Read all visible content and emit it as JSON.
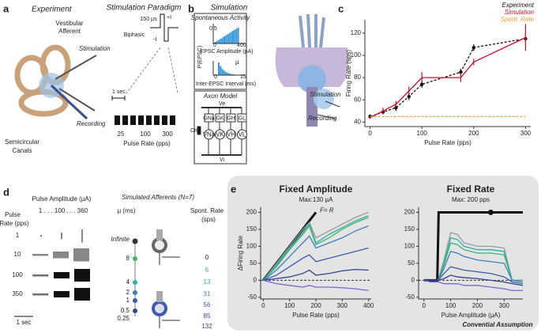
{
  "panels": {
    "a": {
      "label": "a",
      "title": "Experiment",
      "afferent": [
        "Vestibular",
        "Afferent"
      ],
      "stimulation": "Stimulation",
      "canals": [
        "Semicircular",
        "Canals"
      ],
      "recording": "Recording",
      "paradigm": "Stimulation Paradigm",
      "biphasic": "Biphasic",
      "width": "150 µs",
      "plus": "+I",
      "minus": "-I",
      "scale": "1 sec",
      "rates": [
        "25",
        "100",
        "300"
      ],
      "rate_label": "Pulse Rate (pps)"
    },
    "b": {
      "label": "b",
      "title": "Simulation",
      "spont": "Spontaneous Activity",
      "p_label": "P(EPSC)",
      "amp_ticks": [
        "0.5",
        "0",
        "400"
      ],
      "amp_label": "EPSC Amplitude (pA)",
      "mu": "µ",
      "int_ticks": [
        "0",
        "15"
      ],
      "int_label": "Inter-EPSC Interval (ms)",
      "axon": "Axon Model",
      "ve": "Ve",
      "cm": "Cm",
      "gates": [
        "GNa",
        "GK",
        "GH",
        "GL"
      ],
      "reversals": [
        "VNa",
        "VK",
        "VH",
        "VL"
      ],
      "vi": "Vi",
      "stimulation": "Stimulation",
      "recording": "Recording"
    },
    "d": {
      "label": "d",
      "amp_title": "Pulse Amplitude (µA)",
      "amp_range": "1 . . . 100 . . . 360",
      "rate_title": [
        "Pulse",
        "Rate (pps)"
      ],
      "rates": [
        "1",
        "10",
        "100",
        "350"
      ],
      "scale": "1 sec",
      "sim_title": "Simulated Afferents (N=7)",
      "mu_title": "µ (ms)",
      "spont_title": [
        "Spont. Rate",
        "(sps)"
      ],
      "mus": [
        "Infinite",
        "8",
        "4",
        "2",
        "1",
        "0.5",
        "0.25"
      ],
      "spont_rates": [
        "0",
        "6",
        "13",
        "31",
        "56",
        "85",
        "132"
      ]
    },
    "e": {
      "label": "e",
      "assumption": "Convential Assumption"
    }
  },
  "chart_data": [
    {
      "type": "line",
      "xlabel": "Pulse Rate (pps)",
      "ylabel": "Firing Rate (sps)",
      "x": [
        0,
        25,
        50,
        75,
        100,
        175,
        200,
        300
      ],
      "xlim": [
        -10,
        310
      ],
      "ylim": [
        36,
        132
      ],
      "xticks": [
        0,
        100,
        200,
        300
      ],
      "yticks": [
        40,
        60,
        80,
        100,
        120
      ],
      "series": [
        {
          "name": "Experiment",
          "color": "#111111",
          "dash": true,
          "marker": "circle",
          "values": [
            45,
            49,
            53,
            63,
            74,
            85,
            107,
            115
          ],
          "errors": [
            2,
            2,
            3,
            3,
            3,
            3,
            3,
            5
          ]
        },
        {
          "name": "Simulation",
          "color": "#c8102e",
          "values": [
            44,
            50,
            56,
            68,
            80,
            80,
            94,
            116
          ],
          "errors": [
            1,
            3,
            3,
            4,
            5,
            4,
            3,
            12
          ]
        },
        {
          "name": "Spont. Rate",
          "color": "#f0a030",
          "dash": true,
          "values": [
            45,
            45,
            45,
            45,
            45,
            45,
            45,
            45
          ]
        }
      ]
    },
    {
      "type": "line",
      "title": "Fixed Amplitude",
      "subtitle": "Max:130 µA",
      "xlabel": "Pulse Rate (pps)",
      "ylabel": "ΔFiring Rate",
      "annotation": "F= R",
      "x": [
        0,
        50,
        100,
        150,
        175,
        200,
        250,
        300,
        350,
        400
      ],
      "xlim": [
        -10,
        410
      ],
      "ylim": [
        -55,
        215
      ],
      "xticks": [
        0,
        100,
        200,
        300,
        400
      ],
      "yticks": [
        -50,
        0,
        50,
        100,
        150,
        200
      ],
      "series": [
        {
          "color": "#111111",
          "width": 3,
          "values": [
            0,
            50,
            100,
            150,
            175,
            200,
            null,
            null,
            null,
            null
          ]
        },
        {
          "color": "#999999",
          "values": [
            0,
            50,
            100,
            150,
            170,
            125,
            145,
            165,
            185,
            200
          ]
        },
        {
          "color": "#2ab0a8",
          "values": [
            0,
            45,
            95,
            140,
            165,
            110,
            135,
            155,
            175,
            190
          ]
        },
        {
          "color": "#3cb371",
          "values": [
            0,
            40,
            90,
            135,
            160,
            105,
            125,
            150,
            170,
            185
          ]
        },
        {
          "color": "#3a7fc1",
          "values": [
            0,
            30,
            70,
            110,
            130,
            95,
            110,
            125,
            145,
            160
          ]
        },
        {
          "color": "#3d5aa8",
          "values": [
            0,
            15,
            40,
            65,
            75,
            55,
            65,
            75,
            85,
            95
          ]
        },
        {
          "color": "#31428f",
          "values": [
            0,
            5,
            10,
            20,
            30,
            15,
            20,
            28,
            32,
            30
          ]
        },
        {
          "color": "#7a6acd",
          "values": [
            0,
            -10,
            -15,
            -20,
            -15,
            -20,
            -20,
            -22,
            -25,
            -30
          ]
        }
      ]
    },
    {
      "type": "line",
      "title": "Fixed Rate",
      "subtitle": "Max: 200 pps",
      "xlabel": "Pulse Amplitude (µA)",
      "x": [
        0,
        25,
        50,
        55,
        75,
        100,
        125,
        150,
        200,
        250,
        300,
        330,
        370
      ],
      "xlim": [
        -20,
        370
      ],
      "ylim": [
        -55,
        215
      ],
      "xticks": [
        0,
        100,
        200,
        300
      ],
      "yticks": [
        -50,
        0,
        50,
        100,
        150,
        200
      ],
      "series": [
        {
          "color": "#111111",
          "width": 3,
          "marker_at": 9,
          "values": [
            0,
            0,
            0,
            200,
            200,
            200,
            200,
            200,
            200,
            200,
            200,
            200,
            200
          ]
        },
        {
          "color": "#999999",
          "values": [
            0,
            0,
            0,
            5,
            60,
            140,
            135,
            110,
            100,
            100,
            95,
            0,
            0
          ]
        },
        {
          "color": "#2ab0a8",
          "values": [
            0,
            0,
            0,
            5,
            50,
            125,
            120,
            100,
            90,
            90,
            85,
            0,
            0
          ]
        },
        {
          "color": "#3cb371",
          "values": [
            0,
            0,
            0,
            5,
            45,
            110,
            105,
            90,
            80,
            80,
            75,
            0,
            0
          ]
        },
        {
          "color": "#3a7fc1",
          "values": [
            0,
            0,
            0,
            3,
            35,
            85,
            80,
            70,
            60,
            55,
            50,
            0,
            -5
          ]
        },
        {
          "color": "#3d5aa8",
          "values": [
            0,
            0,
            0,
            2,
            20,
            40,
            35,
            30,
            25,
            20,
            10,
            -5,
            -10
          ]
        },
        {
          "color": "#31428f",
          "values": [
            0,
            0,
            0,
            0,
            5,
            15,
            10,
            8,
            5,
            0,
            -5,
            -10,
            -15
          ]
        },
        {
          "color": "#7a6acd",
          "values": [
            0,
            -5,
            -5,
            -5,
            -10,
            -10,
            -10,
            -15,
            -15,
            -20,
            -25,
            -30,
            -30
          ]
        }
      ]
    }
  ]
}
